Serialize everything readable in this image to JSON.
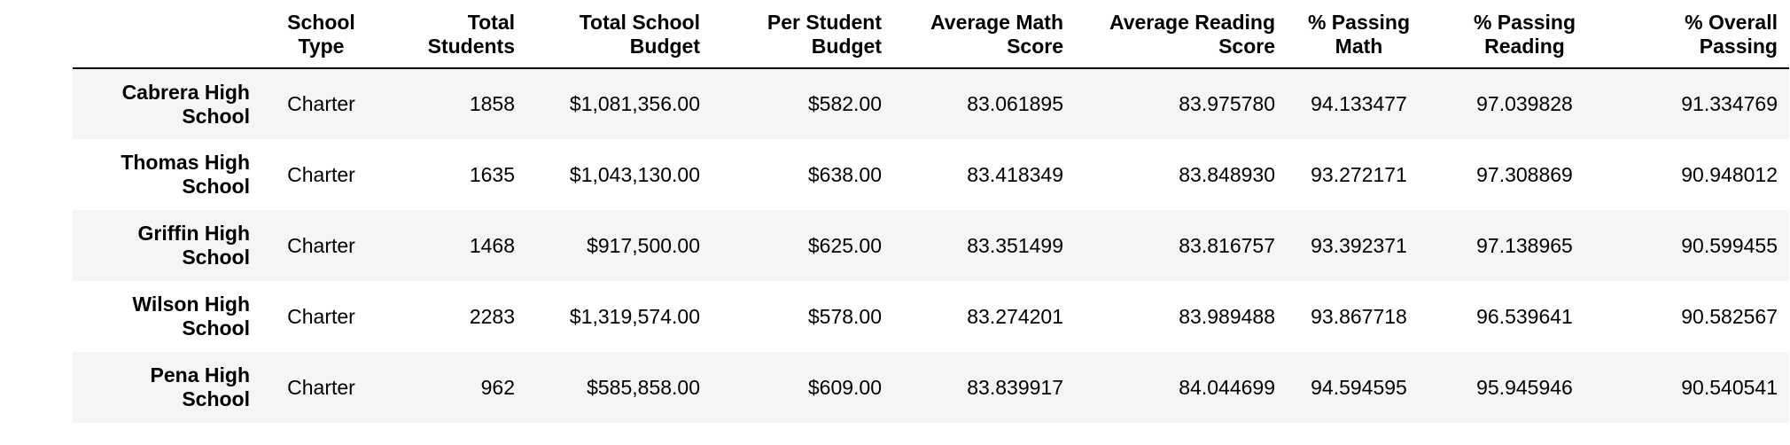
{
  "table": {
    "columns": [
      "",
      "School\nType",
      "Total\nStudents",
      "Total School\nBudget",
      "Per Student\nBudget",
      "Average Math\nScore",
      "Average Reading\nScore",
      "% Passing\nMath",
      "% Passing\nReading",
      "% Overall\nPassing"
    ],
    "rows": [
      {
        "school": "Cabrera High School",
        "type": "Charter",
        "students": "1858",
        "total_budget": "$1,081,356.00",
        "per_student": "$582.00",
        "avg_math": "83.061895",
        "avg_reading": "83.975780",
        "pass_math": "94.133477",
        "pass_reading": "97.039828",
        "overall": "91.334769"
      },
      {
        "school": "Thomas High School",
        "type": "Charter",
        "students": "1635",
        "total_budget": "$1,043,130.00",
        "per_student": "$638.00",
        "avg_math": "83.418349",
        "avg_reading": "83.848930",
        "pass_math": "93.272171",
        "pass_reading": "97.308869",
        "overall": "90.948012"
      },
      {
        "school": "Griffin High School",
        "type": "Charter",
        "students": "1468",
        "total_budget": "$917,500.00",
        "per_student": "$625.00",
        "avg_math": "83.351499",
        "avg_reading": "83.816757",
        "pass_math": "93.392371",
        "pass_reading": "97.138965",
        "overall": "90.599455"
      },
      {
        "school": "Wilson High School",
        "type": "Charter",
        "students": "2283",
        "total_budget": "$1,319,574.00",
        "per_student": "$578.00",
        "avg_math": "83.274201",
        "avg_reading": "83.989488",
        "pass_math": "93.867718",
        "pass_reading": "96.539641",
        "overall": "90.582567"
      },
      {
        "school": "Pena High School",
        "type": "Charter",
        "students": "962",
        "total_budget": "$585,858.00",
        "per_student": "$609.00",
        "avg_math": "83.839917",
        "avg_reading": "84.044699",
        "pass_math": "94.594595",
        "pass_reading": "95.945946",
        "overall": "90.540541"
      }
    ]
  }
}
